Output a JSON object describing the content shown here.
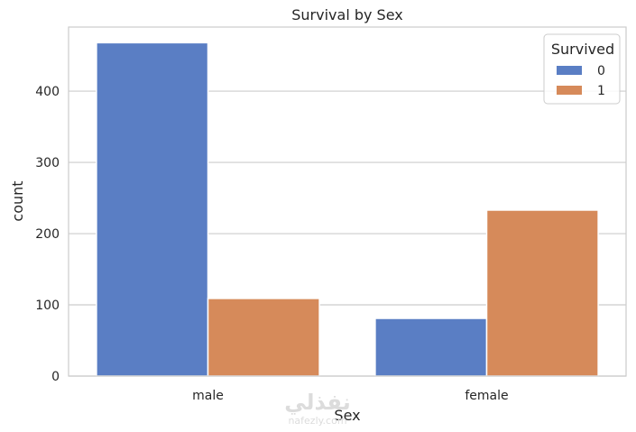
{
  "chart_data": {
    "type": "bar",
    "title": "Survival by Sex",
    "xlabel": "Sex",
    "ylabel": "count",
    "categories": [
      "male",
      "female"
    ],
    "series": [
      {
        "name": "0",
        "values": [
          468,
          81
        ],
        "color": "#5a7ec4"
      },
      {
        "name": "1",
        "values": [
          109,
          233
        ],
        "color": "#d68a5a"
      }
    ],
    "ylim": [
      0,
      490
    ],
    "yticks": [
      0,
      100,
      200,
      300,
      400
    ],
    "grid": true,
    "legend": {
      "title": "Survived",
      "placement": "top-right"
    }
  },
  "watermark": {
    "arabic": "نفذلي",
    "latin": "nafezly.com"
  }
}
